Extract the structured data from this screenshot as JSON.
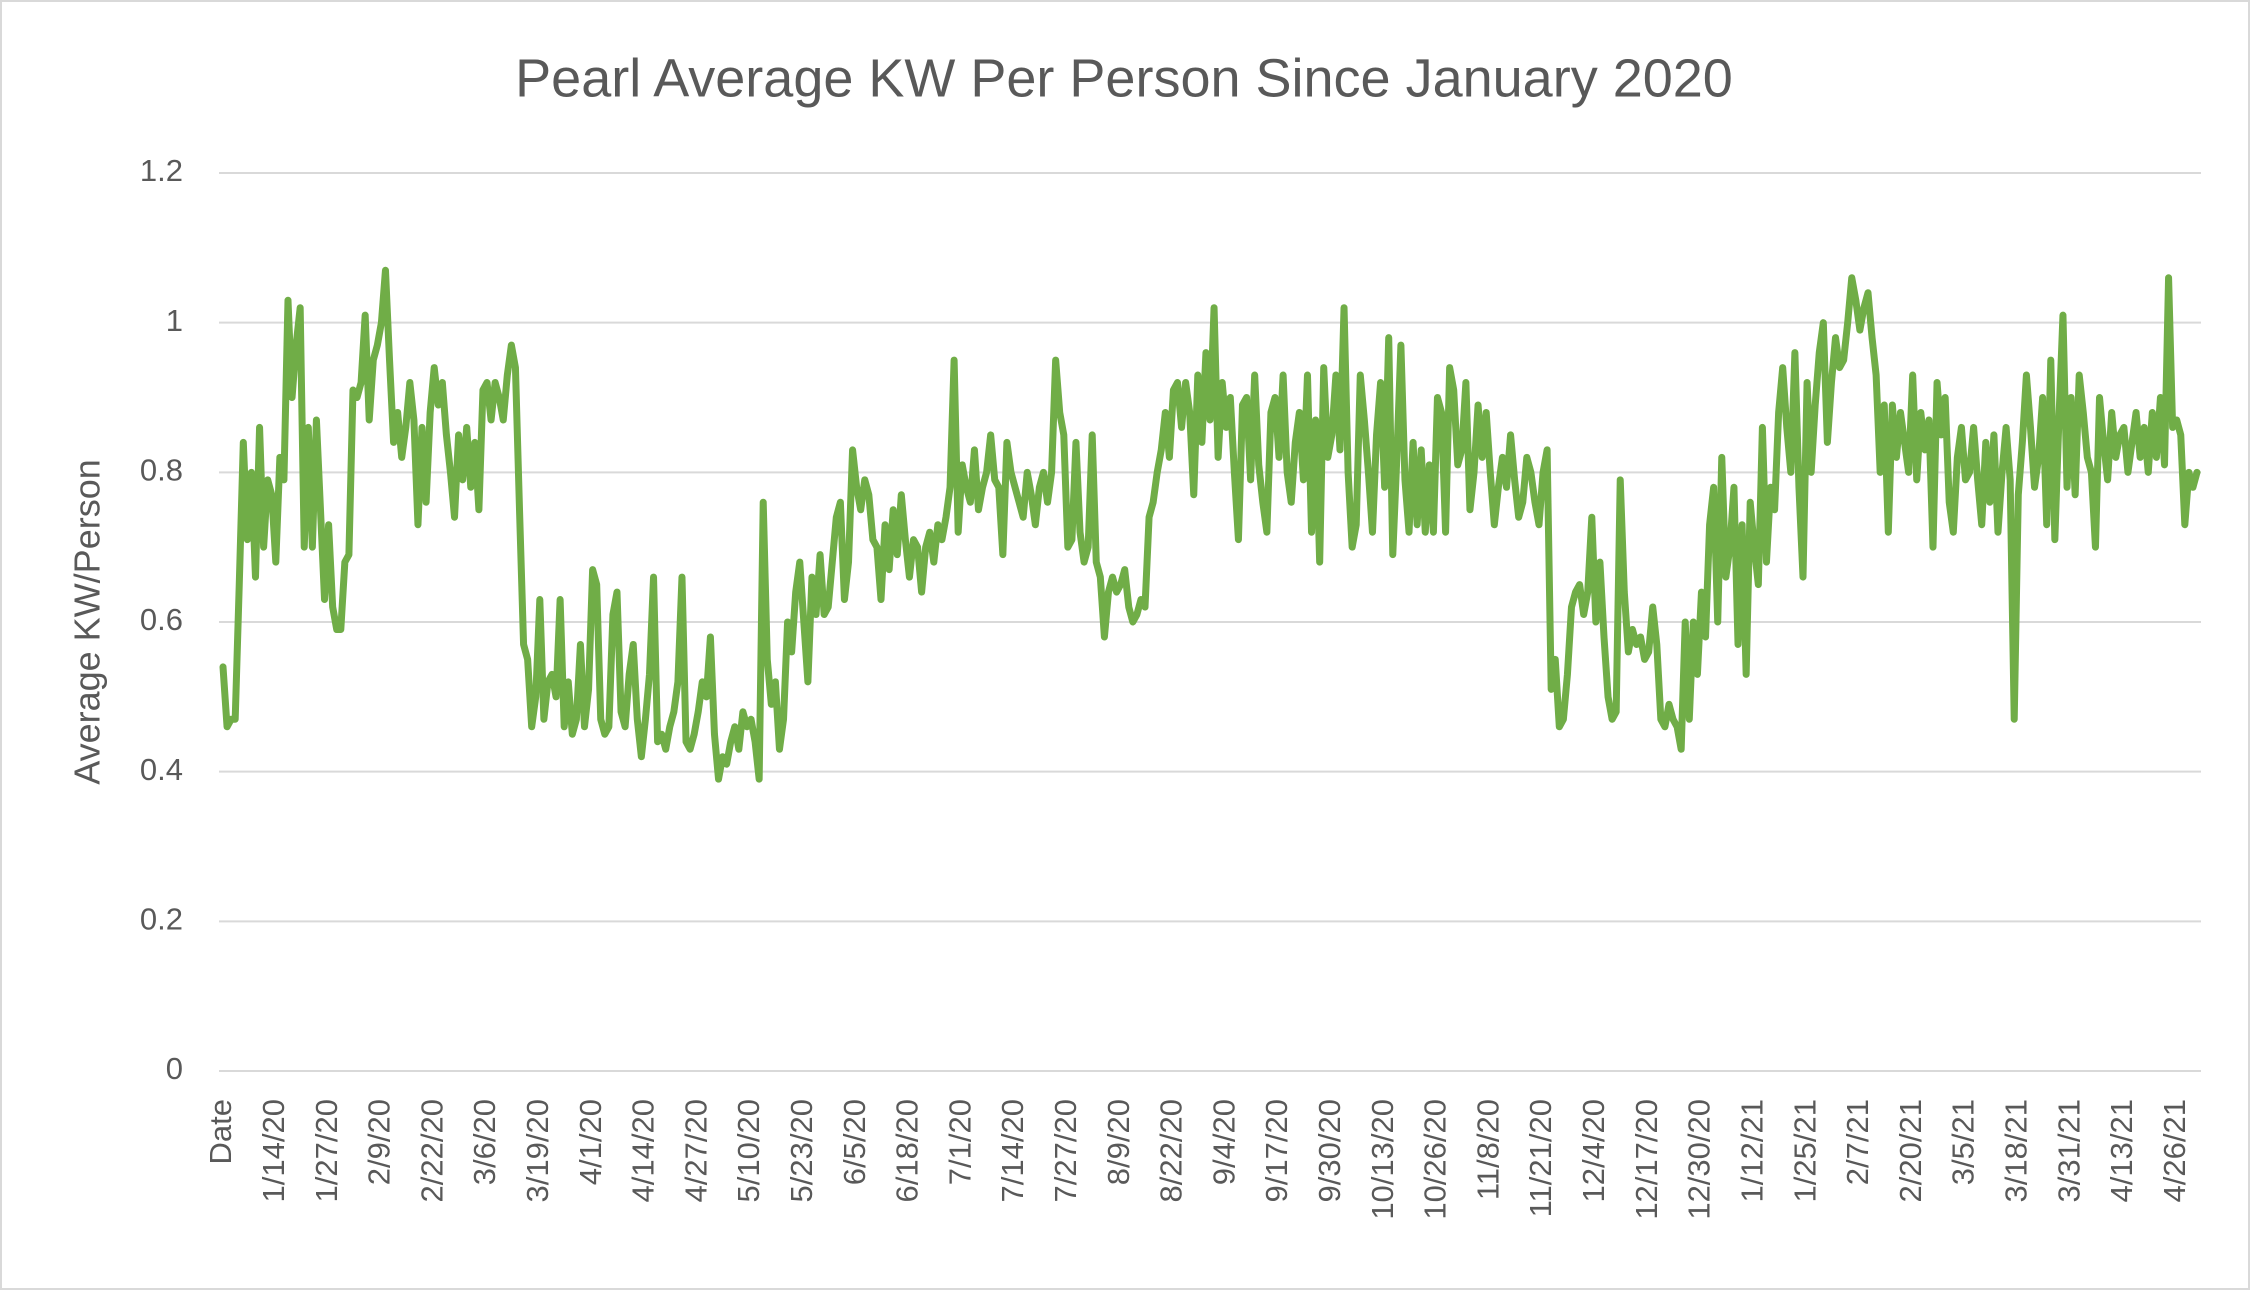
{
  "chart_data": {
    "type": "line",
    "title": "Pearl Average KW Per Person Since January 2020",
    "ylabel": "Average KW/Person",
    "color": "#70ad47",
    "ylim": [
      0,
      1.2
    ],
    "yticks": [
      0,
      0.2,
      0.4,
      0.6,
      0.8,
      1,
      1.2
    ],
    "grid": true,
    "categories": [
      "Date",
      null,
      null,
      null,
      null,
      null,
      null,
      null,
      null,
      null,
      null,
      null,
      null,
      "1/14/20",
      null,
      null,
      null,
      null,
      null,
      null,
      null,
      null,
      null,
      null,
      null,
      null,
      "1/27/20",
      null,
      null,
      null,
      null,
      null,
      null,
      null,
      null,
      null,
      null,
      null,
      null,
      "2/9/20",
      null,
      null,
      null,
      null,
      null,
      null,
      null,
      null,
      null,
      null,
      null,
      null,
      "2/22/20",
      null,
      null,
      null,
      null,
      null,
      null,
      null,
      null,
      null,
      null,
      null,
      null,
      "3/6/20",
      null,
      null,
      null,
      null,
      null,
      null,
      null,
      null,
      null,
      null,
      null,
      null,
      "3/19/20",
      null,
      null,
      null,
      null,
      null,
      null,
      null,
      null,
      null,
      null,
      null,
      null,
      "4/1/20",
      null,
      null,
      null,
      null,
      null,
      null,
      null,
      null,
      null,
      null,
      null,
      null,
      "4/14/20",
      null,
      null,
      null,
      null,
      null,
      null,
      null,
      null,
      null,
      null,
      null,
      null,
      "4/27/20",
      null,
      null,
      null,
      null,
      null,
      null,
      null,
      null,
      null,
      null,
      null,
      null,
      "5/10/20",
      null,
      null,
      null,
      null,
      null,
      null,
      null,
      null,
      null,
      null,
      null,
      null,
      "5/23/20",
      null,
      null,
      null,
      null,
      null,
      null,
      null,
      null,
      null,
      null,
      null,
      null,
      "6/5/20",
      null,
      null,
      null,
      null,
      null,
      null,
      null,
      null,
      null,
      null,
      null,
      null,
      "6/18/20",
      null,
      null,
      null,
      null,
      null,
      null,
      null,
      null,
      null,
      null,
      null,
      null,
      "7/1/20",
      null,
      null,
      null,
      null,
      null,
      null,
      null,
      null,
      null,
      null,
      null,
      null,
      "7/14/20",
      null,
      null,
      null,
      null,
      null,
      null,
      null,
      null,
      null,
      null,
      null,
      null,
      "7/27/20",
      null,
      null,
      null,
      null,
      null,
      null,
      null,
      null,
      null,
      null,
      null,
      null,
      "8/9/20",
      null,
      null,
      null,
      null,
      null,
      null,
      null,
      null,
      null,
      null,
      null,
      null,
      "8/22/20",
      null,
      null,
      null,
      null,
      null,
      null,
      null,
      null,
      null,
      null,
      null,
      null,
      "9/4/20",
      null,
      null,
      null,
      null,
      null,
      null,
      null,
      null,
      null,
      null,
      null,
      null,
      "9/17/20",
      null,
      null,
      null,
      null,
      null,
      null,
      null,
      null,
      null,
      null,
      null,
      null,
      "9/30/20",
      null,
      null,
      null,
      null,
      null,
      null,
      null,
      null,
      null,
      null,
      null,
      null,
      "10/13/20",
      null,
      null,
      null,
      null,
      null,
      null,
      null,
      null,
      null,
      null,
      null,
      null,
      "10/26/20",
      null,
      null,
      null,
      null,
      null,
      null,
      null,
      null,
      null,
      null,
      null,
      null,
      "11/8/20",
      null,
      null,
      null,
      null,
      null,
      null,
      null,
      null,
      null,
      null,
      null,
      null,
      "11/21/20",
      null,
      null,
      null,
      null,
      null,
      null,
      null,
      null,
      null,
      null,
      null,
      null,
      "12/4/20",
      null,
      null,
      null,
      null,
      null,
      null,
      null,
      null,
      null,
      null,
      null,
      null,
      "12/17/20",
      null,
      null,
      null,
      null,
      null,
      null,
      null,
      null,
      null,
      null,
      null,
      null,
      "12/30/20",
      null,
      null,
      null,
      null,
      null,
      null,
      null,
      null,
      null,
      null,
      null,
      null,
      "1/12/21",
      null,
      null,
      null,
      null,
      null,
      null,
      null,
      null,
      null,
      null,
      null,
      null,
      "1/25/21",
      null,
      null,
      null,
      null,
      null,
      null,
      null,
      null,
      null,
      null,
      null,
      null,
      "2/7/21",
      null,
      null,
      null,
      null,
      null,
      null,
      null,
      null,
      null,
      null,
      null,
      null,
      "2/20/21",
      null,
      null,
      null,
      null,
      null,
      null,
      null,
      null,
      null,
      null,
      null,
      null,
      "3/5/21",
      null,
      null,
      null,
      null,
      null,
      null,
      null,
      null,
      null,
      null,
      null,
      null,
      "3/18/21",
      null,
      null,
      null,
      null,
      null,
      null,
      null,
      null,
      null,
      null,
      null,
      null,
      "3/31/21",
      null,
      null,
      null,
      null,
      null,
      null,
      null,
      null,
      null,
      null,
      null,
      null,
      "4/13/21",
      null,
      null,
      null,
      null,
      null,
      null,
      null,
      null,
      null,
      null,
      null,
      null,
      "4/26/21",
      null,
      null,
      null,
      null,
      null
    ],
    "values": [
      0.54,
      0.46,
      0.47,
      0.47,
      0.65,
      0.84,
      0.71,
      0.8,
      0.66,
      0.86,
      0.7,
      0.79,
      0.77,
      0.68,
      0.82,
      0.79,
      1.03,
      0.9,
      0.97,
      1.02,
      0.7,
      0.86,
      0.7,
      0.87,
      0.75,
      0.63,
      0.73,
      0.62,
      0.59,
      0.59,
      0.68,
      0.69,
      0.91,
      0.9,
      0.92,
      1.01,
      0.87,
      0.95,
      0.97,
      1.0,
      1.07,
      0.95,
      0.84,
      0.88,
      0.82,
      0.86,
      0.92,
      0.87,
      0.73,
      0.86,
      0.76,
      0.88,
      0.94,
      0.89,
      0.92,
      0.85,
      0.8,
      0.74,
      0.85,
      0.79,
      0.86,
      0.78,
      0.84,
      0.75,
      0.91,
      0.92,
      0.87,
      0.92,
      0.9,
      0.87,
      0.93,
      0.97,
      0.94,
      0.75,
      0.57,
      0.55,
      0.46,
      0.5,
      0.63,
      0.47,
      0.52,
      0.53,
      0.5,
      0.63,
      0.46,
      0.52,
      0.45,
      0.47,
      0.57,
      0.46,
      0.51,
      0.67,
      0.65,
      0.47,
      0.45,
      0.46,
      0.61,
      0.64,
      0.48,
      0.46,
      0.53,
      0.57,
      0.47,
      0.42,
      0.47,
      0.53,
      0.66,
      0.44,
      0.45,
      0.43,
      0.46,
      0.48,
      0.52,
      0.66,
      0.44,
      0.43,
      0.45,
      0.48,
      0.52,
      0.5,
      0.58,
      0.45,
      0.39,
      0.42,
      0.41,
      0.44,
      0.46,
      0.43,
      0.48,
      0.46,
      0.47,
      0.44,
      0.39,
      0.76,
      0.55,
      0.49,
      0.52,
      0.43,
      0.47,
      0.6,
      0.56,
      0.64,
      0.68,
      0.6,
      0.52,
      0.66,
      0.61,
      0.69,
      0.61,
      0.62,
      0.68,
      0.74,
      0.76,
      0.63,
      0.68,
      0.83,
      0.78,
      0.75,
      0.79,
      0.77,
      0.71,
      0.7,
      0.63,
      0.73,
      0.67,
      0.75,
      0.69,
      0.77,
      0.71,
      0.66,
      0.71,
      0.7,
      0.64,
      0.7,
      0.72,
      0.68,
      0.73,
      0.71,
      0.74,
      0.78,
      0.95,
      0.72,
      0.81,
      0.78,
      0.76,
      0.83,
      0.75,
      0.78,
      0.8,
      0.85,
      0.79,
      0.78,
      0.69,
      0.84,
      0.8,
      0.78,
      0.76,
      0.74,
      0.8,
      0.77,
      0.73,
      0.78,
      0.8,
      0.76,
      0.8,
      0.95,
      0.88,
      0.85,
      0.7,
      0.71,
      0.84,
      0.72,
      0.68,
      0.7,
      0.85,
      0.68,
      0.66,
      0.58,
      0.64,
      0.66,
      0.64,
      0.65,
      0.67,
      0.62,
      0.6,
      0.61,
      0.63,
      0.62,
      0.74,
      0.76,
      0.8,
      0.83,
      0.88,
      0.82,
      0.91,
      0.92,
      0.86,
      0.92,
      0.88,
      0.77,
      0.93,
      0.84,
      0.96,
      0.87,
      1.02,
      0.82,
      0.92,
      0.86,
      0.9,
      0.8,
      0.71,
      0.89,
      0.9,
      0.79,
      0.93,
      0.81,
      0.76,
      0.72,
      0.88,
      0.9,
      0.82,
      0.93,
      0.8,
      0.76,
      0.84,
      0.88,
      0.79,
      0.93,
      0.72,
      0.87,
      0.68,
      0.94,
      0.82,
      0.85,
      0.93,
      0.83,
      1.02,
      0.8,
      0.7,
      0.73,
      0.93,
      0.87,
      0.8,
      0.72,
      0.85,
      0.92,
      0.78,
      0.98,
      0.69,
      0.82,
      0.97,
      0.79,
      0.72,
      0.84,
      0.73,
      0.83,
      0.72,
      0.81,
      0.72,
      0.9,
      0.88,
      0.72,
      0.94,
      0.91,
      0.81,
      0.83,
      0.92,
      0.75,
      0.8,
      0.89,
      0.82,
      0.88,
      0.8,
      0.73,
      0.78,
      0.82,
      0.78,
      0.85,
      0.79,
      0.74,
      0.76,
      0.82,
      0.8,
      0.76,
      0.73,
      0.8,
      0.83,
      0.51,
      0.55,
      0.46,
      0.47,
      0.53,
      0.62,
      0.64,
      0.65,
      0.61,
      0.64,
      0.74,
      0.6,
      0.68,
      0.58,
      0.5,
      0.47,
      0.48,
      0.79,
      0.64,
      0.56,
      0.59,
      0.57,
      0.58,
      0.55,
      0.56,
      0.62,
      0.57,
      0.47,
      0.46,
      0.49,
      0.47,
      0.46,
      0.43,
      0.6,
      0.47,
      0.6,
      0.53,
      0.64,
      0.58,
      0.73,
      0.78,
      0.6,
      0.82,
      0.66,
      0.7,
      0.78,
      0.57,
      0.73,
      0.53,
      0.76,
      0.7,
      0.65,
      0.86,
      0.68,
      0.78,
      0.75,
      0.88,
      0.94,
      0.86,
      0.8,
      0.96,
      0.78,
      0.66,
      0.92,
      0.8,
      0.89,
      0.96,
      1.0,
      0.84,
      0.92,
      0.98,
      0.94,
      0.95,
      1.0,
      1.06,
      1.03,
      0.99,
      1.02,
      1.04,
      0.98,
      0.93,
      0.8,
      0.89,
      0.72,
      0.89,
      0.82,
      0.88,
      0.84,
      0.8,
      0.93,
      0.79,
      0.88,
      0.83,
      0.87,
      0.7,
      0.92,
      0.85,
      0.9,
      0.76,
      0.72,
      0.82,
      0.86,
      0.79,
      0.8,
      0.86,
      0.79,
      0.73,
      0.84,
      0.76,
      0.85,
      0.72,
      0.8,
      0.86,
      0.79,
      0.47,
      0.77,
      0.84,
      0.93,
      0.86,
      0.78,
      0.82,
      0.9,
      0.73,
      0.95,
      0.71,
      0.87,
      1.01,
      0.78,
      0.9,
      0.77,
      0.93,
      0.88,
      0.82,
      0.8,
      0.7,
      0.9,
      0.84,
      0.79,
      0.88,
      0.82,
      0.85,
      0.86,
      0.8,
      0.84,
      0.88,
      0.82,
      0.86,
      0.8,
      0.88,
      0.82,
      0.9,
      0.81,
      1.06,
      0.86,
      0.87,
      0.85,
      0.73,
      0.8,
      0.78,
      0.8
    ]
  }
}
